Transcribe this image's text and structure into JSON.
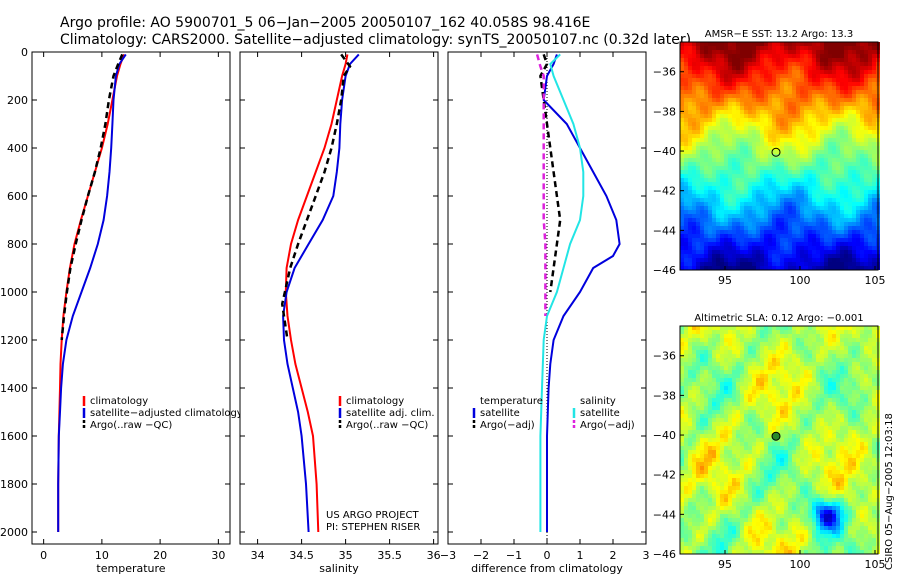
{
  "title_lines": [
    "Argo profile: AO 5900701_5 06−Jan−2005 20050107_162 40.058S 98.416E",
    "Climatology: CARS2000. Satellite−adjusted climatology: synTS_20050107.nc (0.32d later)"
  ],
  "project_text": [
    "US ARGO PROJECT",
    "PI: STEPHEN RISER"
  ],
  "timestamp": "CSIRO 05−Aug−2005 12:03:18",
  "colors": {
    "climatology": "#ff0000",
    "satellite": "#0000dd",
    "argo": "#000000",
    "cyan": "#22e5e5",
    "magenta": "#dd22dd"
  },
  "chart_data": [
    {
      "type": "line",
      "id": "temperature",
      "xlabel": "temperature",
      "xlim": [
        -2,
        32
      ],
      "ylim": [
        0,
        2050
      ],
      "y_reversed": true,
      "xticks": [
        0,
        10,
        20,
        30
      ],
      "xtick_labels": [
        "0",
        "10",
        "20",
        "30"
      ],
      "yticks": [
        0,
        200,
        400,
        600,
        800,
        1000,
        1200,
        1400,
        1600,
        1800,
        2000
      ],
      "ytick_labels": [
        "0",
        "200",
        "400",
        "600",
        "800",
        "1000",
        "1200",
        "1400",
        "1600",
        "1800",
        "2000"
      ],
      "legend": [
        "climatology",
        "satellite−adjusted climatology",
        "Argo(..raw −QC)"
      ],
      "series": [
        {
          "name": "climatology",
          "color_key": "climatology",
          "dash": false,
          "x": [
            13.8,
            13.2,
            12.6,
            11.8,
            11.0,
            10.0,
            8.8,
            7.6,
            6.4,
            5.3,
            4.5,
            3.9,
            3.4,
            3.1,
            2.9,
            2.8,
            2.7,
            2.6,
            2.5,
            2.5
          ],
          "y": [
            10,
            50,
            100,
            200,
            300,
            400,
            500,
            600,
            700,
            800,
            900,
            1000,
            1100,
            1200,
            1300,
            1400,
            1500,
            1600,
            1800,
            2000
          ]
        },
        {
          "name": "satellite−adjusted climatology",
          "color_key": "satellite",
          "dash": false,
          "x": [
            14.1,
            13.0,
            12.4,
            12.0,
            11.8,
            11.6,
            11.3,
            10.9,
            10.3,
            9.3,
            8.0,
            6.5,
            5.0,
            3.9,
            3.3,
            3.0,
            2.8,
            2.6,
            2.5,
            2.5
          ],
          "y": [
            10,
            50,
            100,
            200,
            300,
            400,
            500,
            600,
            700,
            800,
            900,
            1000,
            1100,
            1200,
            1300,
            1400,
            1500,
            1600,
            1800,
            2000
          ]
        },
        {
          "name": "Argo(..raw −QC)",
          "color_key": "argo",
          "dash": true,
          "x": [
            13.5,
            12.8,
            12.0,
            11.2,
            10.6,
            9.8,
            8.8,
            7.6,
            6.5,
            5.5,
            4.6,
            4.0,
            3.5,
            3.1
          ],
          "y": [
            10,
            50,
            100,
            200,
            300,
            400,
            500,
            600,
            700,
            800,
            900,
            1000,
            1100,
            1200
          ]
        }
      ]
    },
    {
      "type": "line",
      "id": "salinity",
      "xlabel": "salinity",
      "xlim": [
        33.8,
        36.05
      ],
      "ylim": [
        0,
        2050
      ],
      "y_reversed": true,
      "xticks": [
        34,
        34.5,
        35,
        35.5,
        36
      ],
      "xtick_labels": [
        "34",
        "34.5",
        "35",
        "35.5",
        "36"
      ],
      "legend": [
        "climatology",
        "satellite adj. clim.",
        "Argo(..raw −QC)"
      ],
      "series": [
        {
          "name": "climatology",
          "color_key": "climatology",
          "dash": false,
          "x": [
            35.02,
            35.0,
            34.96,
            34.9,
            34.84,
            34.76,
            34.66,
            34.56,
            34.46,
            34.38,
            34.33,
            34.32,
            34.34,
            34.38,
            34.43,
            34.5,
            34.57,
            34.63,
            34.67,
            34.69
          ],
          "y": [
            10,
            50,
            100,
            200,
            300,
            400,
            500,
            600,
            700,
            800,
            900,
            1000,
            1100,
            1200,
            1300,
            1400,
            1500,
            1600,
            1800,
            2000
          ]
        },
        {
          "name": "satellite adj. clim.",
          "color_key": "satellite",
          "dash": false,
          "x": [
            35.15,
            35.05,
            35.0,
            34.96,
            34.94,
            34.93,
            34.9,
            34.86,
            34.74,
            34.58,
            34.42,
            34.33,
            34.29,
            34.3,
            34.34,
            34.4,
            34.46,
            34.5,
            34.55,
            34.58
          ],
          "y": [
            10,
            50,
            100,
            200,
            300,
            400,
            500,
            600,
            700,
            800,
            900,
            1000,
            1100,
            1200,
            1300,
            1400,
            1500,
            1600,
            1800,
            2000
          ]
        },
        {
          "name": "Argo(..raw −QC)",
          "color_key": "argo",
          "dash": true,
          "x": [
            34.95,
            35.05,
            34.98,
            34.95,
            34.9,
            34.84,
            34.76,
            34.66,
            34.56,
            34.46,
            34.37,
            34.31,
            34.28,
            34.3,
            34.34
          ],
          "y": [
            10,
            60,
            100,
            200,
            300,
            400,
            500,
            600,
            700,
            800,
            900,
            1000,
            1050,
            1100,
            1200
          ]
        }
      ]
    },
    {
      "type": "line",
      "id": "difference",
      "xlabel": "difference from climatology",
      "xlim": [
        -3,
        3
      ],
      "ylim": [
        0,
        2050
      ],
      "y_reversed": true,
      "xticks": [
        -3,
        -2,
        -1,
        0,
        1,
        2,
        3
      ],
      "xtick_labels": [
        "−3",
        "−2",
        "−1",
        "0",
        "1",
        "2",
        "3"
      ],
      "legend_left": [
        "temperature",
        "satellite",
        "Argo(−adj)"
      ],
      "legend_right": [
        "salinity",
        "satellite",
        "Argo(−adj)"
      ],
      "series": [
        {
          "name": "temperature satellite",
          "color_key": "satellite",
          "dash": false,
          "x": [
            0.3,
            0.2,
            0.0,
            -0.1,
            0.6,
            1.0,
            1.4,
            1.8,
            2.1,
            2.2,
            2.0,
            1.4,
            1.0,
            0.5,
            0.2,
            0.1,
            0.05,
            0.0,
            0.0
          ],
          "y": [
            10,
            50,
            100,
            200,
            300,
            400,
            500,
            600,
            700,
            800,
            850,
            900,
            1000,
            1100,
            1200,
            1300,
            1400,
            1600,
            2000
          ]
        },
        {
          "name": "temperature Argo(−adj)",
          "color_key": "argo",
          "dash": true,
          "x": [
            -0.1,
            0.0,
            -0.2,
            -0.1,
            0.0,
            0.1,
            0.2,
            0.3,
            0.4,
            0.3,
            0.2,
            0.1
          ],
          "y": [
            10,
            50,
            100,
            200,
            300,
            400,
            500,
            600,
            700,
            800,
            900,
            1000
          ]
        },
        {
          "name": "salinity satellite",
          "color_key": "cyan",
          "dash": false,
          "x": [
            0.4,
            0.1,
            0.2,
            0.5,
            0.8,
            1.0,
            1.1,
            1.1,
            1.0,
            0.7,
            0.5,
            0.3,
            0.0,
            -0.1,
            -0.15,
            -0.2,
            -0.2
          ],
          "y": [
            10,
            50,
            100,
            200,
            300,
            400,
            500,
            600,
            700,
            800,
            900,
            1000,
            1100,
            1200,
            1400,
            1600,
            2000
          ]
        },
        {
          "name": "salinity Argo(−adj)",
          "color_key": "magenta",
          "dash": true,
          "x": [
            -0.3,
            -0.2,
            -0.1,
            -0.1,
            -0.1,
            -0.1,
            -0.1,
            -0.1,
            -0.1,
            -0.05,
            -0.05,
            -0.05,
            -0.05
          ],
          "y": [
            10,
            60,
            100,
            200,
            300,
            400,
            500,
            600,
            700,
            800,
            900,
            1000,
            1100
          ]
        }
      ]
    },
    {
      "type": "heatmap",
      "id": "sst-map",
      "title": "AMSR−E SST: 13.2 Argo: 13.3",
      "xlim": [
        92,
        105.2
      ],
      "ylim": [
        -46,
        -34.5
      ],
      "xticks": [
        95,
        100,
        105
      ],
      "xtick_labels": [
        "95",
        "100",
        "105"
      ],
      "yticks": [
        -36,
        -38,
        -40,
        -42,
        -44,
        -46
      ],
      "ytick_labels": [
        "−36",
        "−38",
        "−40",
        "−42",
        "−44",
        "−46"
      ],
      "marker": {
        "lon": 98.4,
        "lat": -40.06
      }
    },
    {
      "type": "heatmap",
      "id": "sla-map",
      "title": "Altimetric SLA: 0.12 Argo: −0.001",
      "xlim": [
        92,
        105.2
      ],
      "ylim": [
        -46,
        -34.5
      ],
      "xticks": [
        95,
        100,
        105
      ],
      "xtick_labels": [
        "95",
        "100",
        "105"
      ],
      "yticks": [
        -36,
        -38,
        -40,
        -42,
        -44,
        -46
      ],
      "ytick_labels": [
        "−36",
        "−38",
        "−40",
        "−42",
        "−44",
        "−46"
      ],
      "marker": {
        "lon": 98.4,
        "lat": -40.06
      }
    }
  ]
}
